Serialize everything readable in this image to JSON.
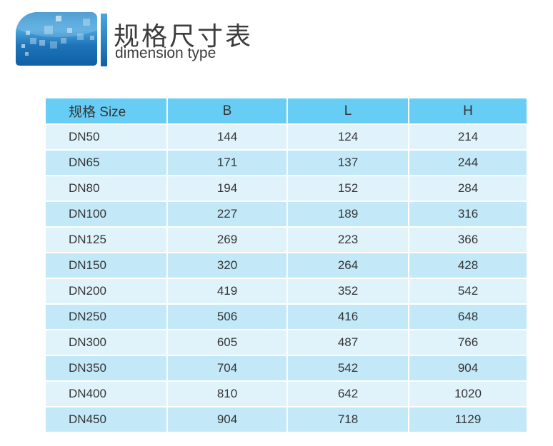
{
  "header": {
    "logo": "blue-gradient-emblem",
    "title_zh": "规格尺寸表",
    "title_en": "dimension type"
  },
  "table": {
    "columns": [
      "规格 Size",
      "B",
      "L",
      "H"
    ],
    "row_keys": [
      "size",
      "B",
      "L",
      "H"
    ],
    "rows": [
      {
        "size": "DN50",
        "B": "144",
        "L": "124",
        "H": "214"
      },
      {
        "size": "DN65",
        "B": "171",
        "L": "137",
        "H": "244"
      },
      {
        "size": "DN80",
        "B": "194",
        "L": "152",
        "H": "284"
      },
      {
        "size": "DN100",
        "B": "227",
        "L": "189",
        "H": "316"
      },
      {
        "size": "DN125",
        "B": "269",
        "L": "223",
        "H": "366"
      },
      {
        "size": "DN150",
        "B": "320",
        "L": "264",
        "H": "428"
      },
      {
        "size": "DN200",
        "B": "419",
        "L": "352",
        "H": "542"
      },
      {
        "size": "DN250",
        "B": "506",
        "L": "416",
        "H": "648"
      },
      {
        "size": "DN300",
        "B": "605",
        "L": "487",
        "H": "766"
      },
      {
        "size": "DN350",
        "B": "704",
        "L": "542",
        "H": "904"
      },
      {
        "size": "DN400",
        "B": "810",
        "L": "642",
        "H": "1020"
      },
      {
        "size": "DN450",
        "B": "904",
        "L": "718",
        "H": "1129"
      }
    ]
  },
  "colors": {
    "header_bg": "#67cdf5",
    "row_light": "#e0f3fb",
    "row_alt": "#c3e8f8",
    "logo_dark": "#0f60a6",
    "logo_light": "#3f9cd9",
    "text": "#353535"
  }
}
